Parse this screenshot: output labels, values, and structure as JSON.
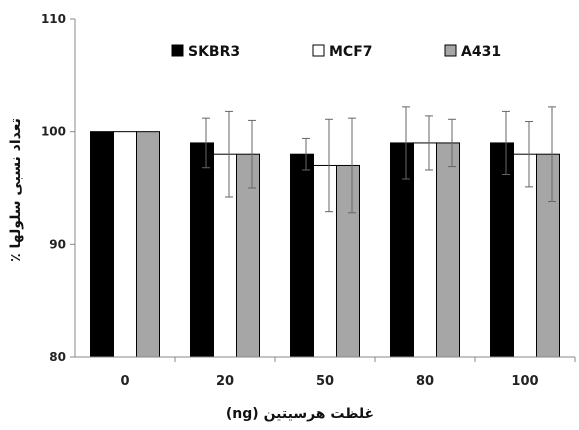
{
  "chart_data": {
    "type": "bar",
    "categories": [
      "0",
      "20",
      "50",
      "80",
      "100"
    ],
    "series": [
      {
        "name": "SKBR3",
        "color": "#000000",
        "values": [
          100,
          99,
          98,
          99,
          99
        ],
        "errors": [
          0,
          2.2,
          1.4,
          3.2,
          2.8
        ]
      },
      {
        "name": "MCF7",
        "color": "#ffffff",
        "values": [
          100,
          98,
          97,
          99,
          98
        ],
        "errors": [
          0,
          3.8,
          4.1,
          2.4,
          2.9
        ]
      },
      {
        "name": "A431",
        "color": "#a6a6a6",
        "values": [
          100,
          98,
          97,
          99,
          98
        ],
        "errors": [
          0,
          3.0,
          4.2,
          2.1,
          4.2
        ]
      }
    ],
    "ylim": [
      80,
      110
    ],
    "yticks": [
      "80",
      "90",
      "100",
      "110"
    ],
    "xlabel": "غلظت هرسیتین (ng)",
    "ylabel": "٪ تعداد نسبی سلولها",
    "legend_position": "top",
    "grid": false
  }
}
